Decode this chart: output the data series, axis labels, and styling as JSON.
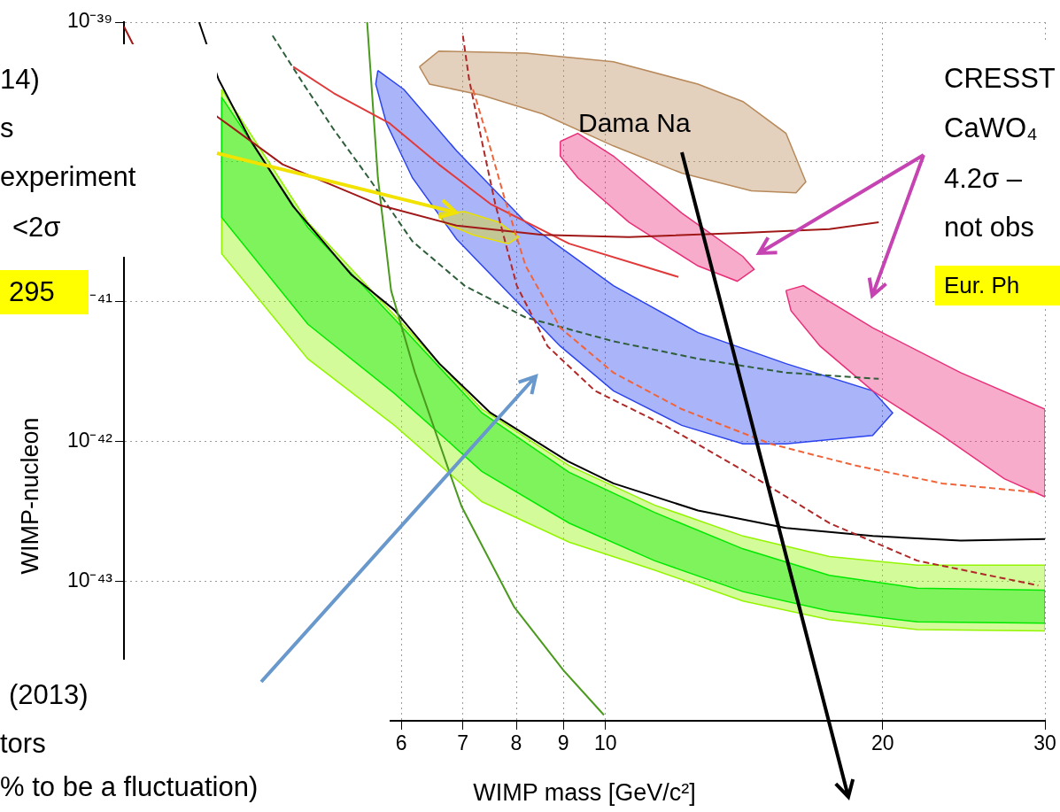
{
  "chart_data": {
    "type": "line",
    "xlabel": "WIMP mass [GeV/c²]",
    "ylabel": "WIMP-nucleon",
    "log": "xy",
    "xlim": [
      3,
      30
    ],
    "ylim": [
      1e-44,
      1e-39
    ],
    "xticks": [
      6,
      7,
      8,
      9,
      10,
      20,
      30
    ],
    "yticks": [
      {
        "value": 1e-39,
        "label": "10⁻³⁹"
      },
      {
        "value": 1e-40,
        "label": null
      },
      {
        "value": 1e-41,
        "label": "⁻⁴¹"
      },
      {
        "value": 1e-42,
        "label": "10⁻⁴²"
      },
      {
        "value": 1e-43,
        "label": "10⁻⁴³"
      },
      {
        "value": 1e-44,
        "label": null
      }
    ],
    "grid": true,
    "legend": false,
    "marker": "none",
    "annotations": [
      "14)",
      "s",
      "experiment",
      "<2σ",
      "295",
      "(2013)",
      "tors",
      "% to be a fluctuation)",
      "CRESST",
      "CaWO₄",
      "4.2σ –",
      "not obs",
      "Eur. Ph",
      "Dama Na"
    ],
    "series": [
      {
        "type": "area",
        "color": "#93f500",
        "x": [
          3.83,
          4.75,
          5.9,
          7.34,
          9.13,
          11.3,
          14.1,
          17.5,
          21.8,
          30,
          30,
          21.8,
          17.5,
          14.1,
          11.3,
          9.13,
          7.34,
          5.9,
          4.75,
          3.83,
          3.83
        ],
        "values": [
          3.3e-40,
          3.7e-41,
          8e-42,
          1.7e-42,
          6.7e-43,
          3.5e-43,
          2.1e-43,
          1.5e-43,
          1.3e-43,
          1.3e-43,
          4.4e-44,
          4.5e-44,
          5.3e-44,
          7.2e-44,
          1.2e-43,
          1.9e-43,
          3.7e-43,
          1.3e-42,
          3.9e-42,
          2.2e-41,
          3.3e-40
        ]
      },
      {
        "type": "area",
        "color": "#00e900",
        "x": [
          3.83,
          4.75,
          5.9,
          7.34,
          9.13,
          11.3,
          14.1,
          17.5,
          21.8,
          30,
          30,
          21.8,
          17.5,
          14.1,
          11.3,
          9.13,
          7.34,
          5.9,
          4.75,
          3.83,
          3.83
        ],
        "values": [
          2.9e-40,
          3.4e-41,
          7.5e-42,
          1.6e-42,
          6e-43,
          3.1e-43,
          1.7e-43,
          1.1e-43,
          8.9e-44,
          8.6e-44,
          5e-44,
          5.1e-44,
          6.1e-44,
          8.4e-44,
          1.4e-43,
          2.6e-43,
          6.1e-43,
          2.2e-42,
          6.9e-42,
          4e-41,
          2.9e-40
        ]
      },
      {
        "type": "area",
        "color": "#b8895a",
        "x": [
          6.28,
          6.59,
          8.19,
          10.2,
          12.6,
          14.1,
          15.7,
          16.5,
          16.1,
          14.4,
          12.1,
          10.2,
          8.55,
          7.34,
          6.44,
          6.28
        ],
        "values": [
          4.8e-40,
          6.2e-40,
          6e-40,
          5.2e-40,
          3.6e-40,
          2.7e-40,
          1.6e-40,
          7.2e-41,
          6e-41,
          6.2e-41,
          8.3e-41,
          1.3e-40,
          2.2e-40,
          3e-40,
          3.6e-40,
          4.8e-40
        ]
      },
      {
        "type": "area",
        "color": "#2b44f0",
        "x": [
          5.66,
          6.04,
          6.89,
          8.19,
          10.2,
          12.6,
          15.7,
          19.5,
          20.5,
          19.5,
          15.7,
          14.1,
          12.1,
          10.2,
          8.93,
          8.01,
          6.89,
          6.17,
          5.78,
          5.63,
          5.66
        ],
        "values": [
          4.5e-40,
          3.3e-40,
          1.2e-40,
          3.7e-41,
          1.3e-41,
          6e-42,
          3.6e-42,
          2.3e-42,
          1.6e-42,
          1.1e-42,
          9.6e-43,
          9.6e-43,
          1.3e-42,
          2.3e-42,
          4.8e-42,
          1e-41,
          2.8e-41,
          7.7e-41,
          1.9e-40,
          3.6e-40,
          4.5e-40
        ]
      },
      {
        "type": "area",
        "color": "#e8e000",
        "x": [
          6.59,
          7.03,
          7.66,
          8.05,
          7.84,
          7.18,
          6.66,
          6.59
        ],
        "values": [
          4.3e-41,
          4.4e-41,
          3.7e-41,
          2.9e-41,
          2.6e-41,
          3e-41,
          3.7e-41,
          4.3e-41
        ]
      },
      {
        "type": "area",
        "color": "#e8307a",
        "x": [
          8.93,
          9.33,
          10.2,
          12.1,
          14.1,
          14.5,
          13.9,
          12.6,
          10.6,
          9.33,
          8.93,
          8.93
        ],
        "values": [
          1.4e-40,
          1.6e-40,
          1.1e-40,
          4.3e-41,
          2.1e-41,
          1.7e-41,
          1.4e-41,
          1.8e-41,
          3.7e-41,
          7.7e-41,
          1.1e-40,
          1.4e-40
        ]
      },
      {
        "type": "area",
        "color": "#e8307a",
        "x": [
          15.7,
          16.4,
          19.5,
          24.3,
          30,
          30,
          27.1,
          23.2,
          19.5,
          17.1,
          15.9,
          15.7
        ],
        "values": [
          1.2e-41,
          1.3e-41,
          6.5e-42,
          3.1e-42,
          1.7e-42,
          4e-43,
          5.4e-43,
          1.1e-42,
          2.3e-42,
          4.8e-42,
          8.6e-42,
          1.2e-41
        ]
      },
      {
        "color": "#000000",
        "x": [
          3.62,
          3.8,
          4.11,
          4.58,
          5.3,
          5.9,
          6.6,
          7.5,
          9.1,
          10.2,
          12.6,
          15.7,
          19.5,
          24.3,
          30
        ],
        "values": [
          1e-39,
          3.9e-40,
          1.45e-40,
          4.8e-41,
          1.55e-41,
          8.7e-42,
          3.6e-42,
          1.6e-42,
          7.2e-43,
          5e-43,
          3.2e-43,
          2.4e-43,
          2.1e-43,
          1.95e-43,
          2e-43
        ]
      },
      {
        "color": "#4a9a1e",
        "x": [
          5.51,
          5.66,
          5.85,
          6.21,
          6.77,
          6.98,
          7.96,
          9.0,
          9.96
        ],
        "values": [
          1e-39,
          7.7e-41,
          1.2e-41,
          3.1e-42,
          6e-43,
          3.4e-43,
          6.5e-44,
          2.3e-44,
          1.1e-44
        ]
      },
      {
        "color": "#2f5e3a",
        "line_style": "dashed",
        "x": [
          4.35,
          4.7,
          5.07,
          5.53,
          6.17,
          7.03,
          8.19,
          10.2,
          12.6,
          15.7,
          19.8
        ],
        "values": [
          8e-40,
          3.6e-40,
          1.7e-40,
          7.7e-41,
          2.7e-41,
          1.3e-41,
          7.7e-42,
          5.2e-42,
          3.9e-42,
          3.1e-42,
          2.8e-42
        ]
      },
      {
        "color": "#e03a3a",
        "x": [
          4.58,
          5.07,
          5.82,
          6.59,
          7.5,
          9.13,
          12.0
        ],
        "values": [
          4.8e-40,
          3.1e-40,
          1.9e-40,
          9.6e-41,
          5e-41,
          2.6e-41,
          1.5e-41
        ]
      },
      {
        "color": "#a01818",
        "x": [
          3.0,
          3.07,
          3.79,
          4.46,
          5.69,
          6.89,
          8.55,
          10.6,
          14.1,
          17.5,
          19.8
        ],
        "values": [
          9.3e-40,
          6.9e-40,
          2.1e-40,
          9.6e-41,
          4.9e-41,
          3.5e-41,
          3e-41,
          2.9e-41,
          3.1e-41,
          3.3e-41,
          3.7e-41
        ]
      },
      {
        "color": "#b02828",
        "line_style": "dashed",
        "x": [
          7.0,
          7.11,
          7.31,
          7.59,
          8.01,
          8.65,
          9.74,
          11.6,
          14.1,
          17.5,
          21.8,
          29.5
        ],
        "values": [
          8e-40,
          3.9e-40,
          1.6e-40,
          5e-41,
          1.3e-41,
          4.8e-42,
          2.3e-42,
          1.3e-42,
          6.2e-43,
          2.6e-43,
          1.4e-43,
          9.3e-44
        ]
      },
      {
        "color": "#f0643a",
        "line_style": "dashed",
        "x": [
          7.18,
          7.42,
          7.75,
          8.19,
          8.93,
          10.2,
          12.1,
          15.1,
          18.7,
          23.2,
          29.5
        ],
        "values": [
          3.3e-40,
          1.6e-40,
          5.8e-41,
          1.8e-41,
          6.5e-42,
          3.1e-42,
          1.7e-42,
          9.6e-43,
          6.7e-43,
          5e-43,
          4.3e-43
        ]
      }
    ]
  }
}
